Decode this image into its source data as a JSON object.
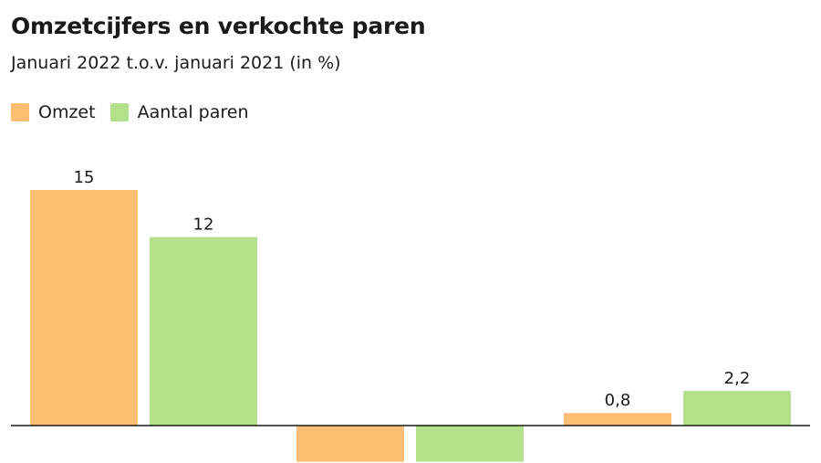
{
  "title": "Omzetcijfers en verkochte paren",
  "subtitle": "Januari 2022 t.o.v. januari 2021 (in %)",
  "legend": [
    {
      "label": "Omzet",
      "color": "#FCBE73"
    },
    {
      "label": "Aantal paren",
      "color": "#B3E08A"
    }
  ],
  "chart_data": {
    "type": "bar",
    "title": "Omzetcijfers en verkochte paren",
    "subtitle": "Januari 2022 t.o.v. januari 2021 (in %)",
    "categories": [
      "",
      "",
      ""
    ],
    "series": [
      {
        "name": "Omzet",
        "color": "#FCBE73",
        "values": [
          15,
          -2.3,
          0.8
        ],
        "labels": [
          "15",
          "",
          "0,8"
        ]
      },
      {
        "name": "Aantal paren",
        "color": "#B3E08A",
        "values": [
          12,
          -2.3,
          2.2
        ],
        "labels": [
          "12",
          "",
          "2,2"
        ]
      }
    ],
    "ylim": [
      -2.4,
      15
    ],
    "legend": "top-left",
    "grid": false
  }
}
